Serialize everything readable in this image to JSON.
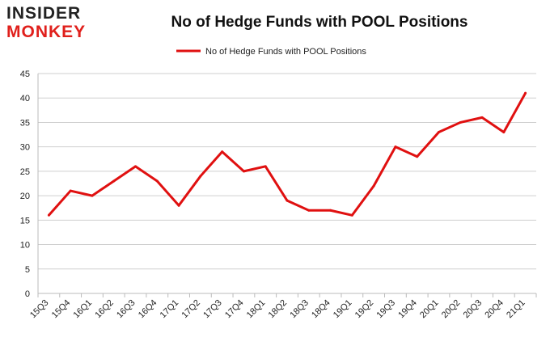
{
  "logo": {
    "line1": "INSIDER",
    "line2": "MONKEY"
  },
  "chart_data": {
    "type": "line",
    "title": "No of Hedge Funds with POOL Positions",
    "xlabel": "",
    "ylabel": "",
    "categories": [
      "15Q3",
      "15Q4",
      "16Q1",
      "16Q2",
      "16Q3",
      "16Q4",
      "17Q1",
      "17Q2",
      "17Q3",
      "17Q4",
      "18Q1",
      "18Q2",
      "18Q3",
      "18Q4",
      "19Q1",
      "19Q2",
      "19Q3",
      "19Q4",
      "20Q1",
      "20Q2",
      "20Q3",
      "20Q4",
      "21Q1"
    ],
    "series": [
      {
        "name": "No of Hedge Funds with POOL Positions",
        "values": [
          16,
          21,
          20,
          23,
          26,
          23,
          18,
          24,
          29,
          25,
          26,
          19,
          17,
          17,
          16,
          22,
          30,
          28,
          33,
          35,
          36,
          33,
          41
        ],
        "color": "#e01010"
      }
    ],
    "ylim": [
      0,
      45
    ],
    "yticks": [
      0,
      5,
      10,
      15,
      20,
      25,
      30,
      35,
      40,
      45
    ],
    "grid": true,
    "legend": "top-center"
  }
}
